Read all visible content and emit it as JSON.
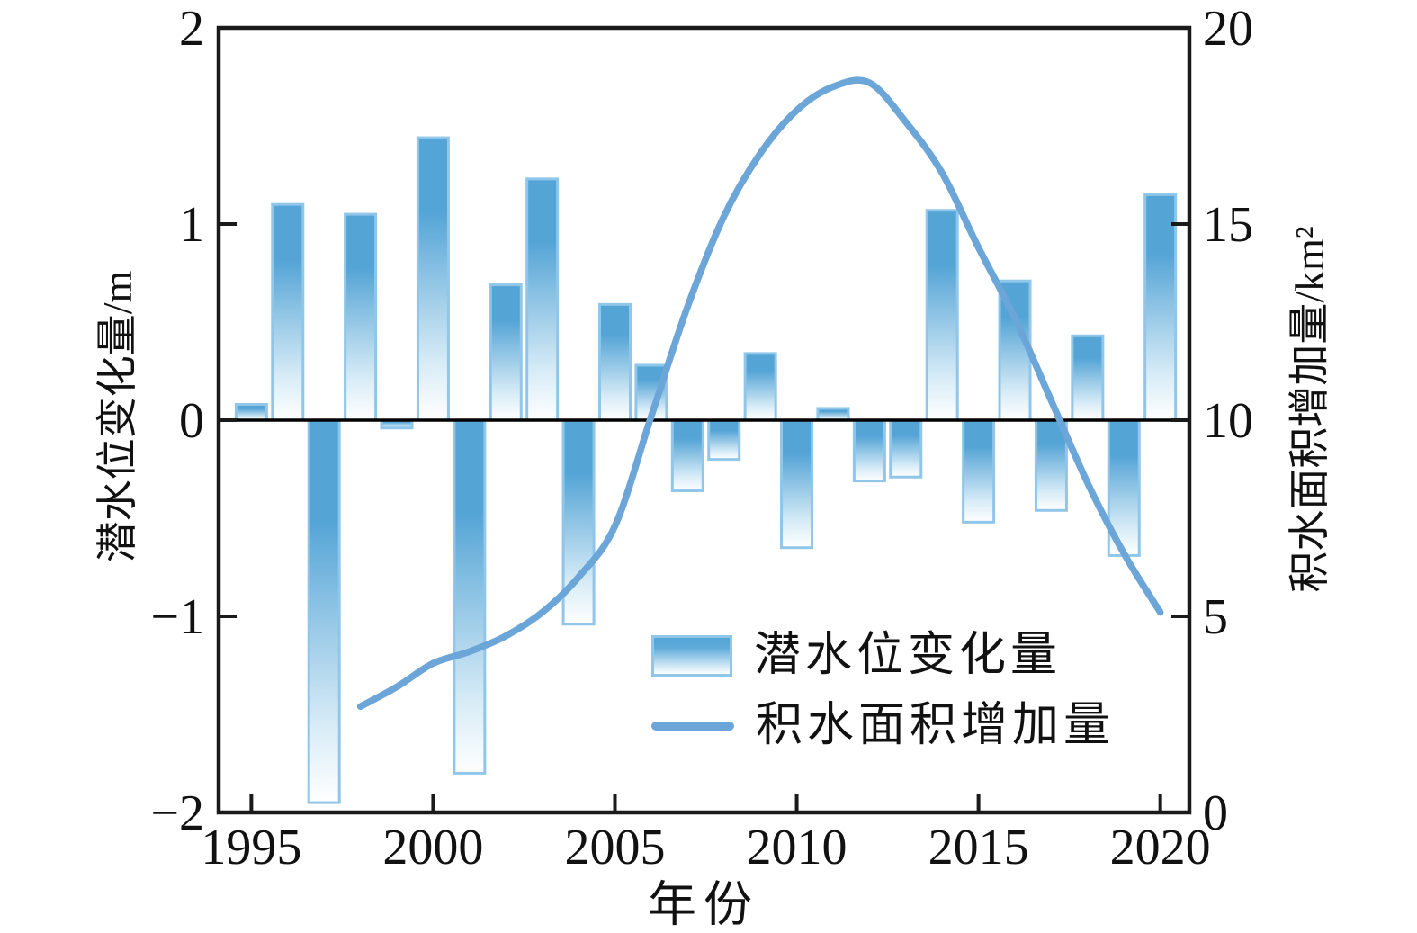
{
  "chart_data": {
    "type": "bar",
    "title": "",
    "xlabel": "年份",
    "ylabel_left": "潜水位变化量/m",
    "ylabel_right": "积水面积增加量/km²",
    "xlim": [
      1994.1,
      2020.8
    ],
    "ylim_left": [
      -2,
      2
    ],
    "ylim_right": [
      0,
      20
    ],
    "xticks": [
      1995,
      2000,
      2005,
      2010,
      2015,
      2020
    ],
    "yticks_left": [
      2,
      1,
      0,
      -1,
      -2
    ],
    "yticks_right": [
      20,
      15,
      10,
      5,
      0
    ],
    "grid": false,
    "legend_position": "inside-bottom-center",
    "categories": [
      1995,
      1996,
      1997,
      1998,
      1999,
      2000,
      2001,
      2002,
      2003,
      2004,
      2005,
      2006,
      2007,
      2008,
      2009,
      2010,
      2011,
      2012,
      2013,
      2014,
      2015,
      2016,
      2017,
      2018,
      2019,
      2020
    ],
    "series": [
      {
        "name": "潜水位变化量",
        "type": "bar",
        "axis": "left",
        "unit": "m",
        "values": [
          0.08,
          1.1,
          -1.95,
          1.05,
          -0.04,
          1.44,
          -1.8,
          0.69,
          1.23,
          -1.04,
          0.59,
          0.28,
          -0.36,
          -0.2,
          0.34,
          -0.65,
          0.06,
          -0.31,
          -0.29,
          1.07,
          -0.52,
          0.71,
          -0.46,
          0.43,
          -0.69,
          1.15
        ]
      },
      {
        "name": "积水面积增加量",
        "type": "line",
        "axis": "right",
        "unit": "km²",
        "x": [
          1998,
          1999,
          2000,
          2001,
          2002,
          2003,
          2004,
          2005,
          2006,
          2007,
          2008,
          2009,
          2010,
          2011,
          2012,
          2013,
          2014,
          2015,
          2016,
          2017,
          2018,
          2019,
          2020
        ],
        "values": [
          2.7,
          3.2,
          3.8,
          4.1,
          4.5,
          5.1,
          6.0,
          7.3,
          10.1,
          12.9,
          15.2,
          16.8,
          17.9,
          18.5,
          18.6,
          17.6,
          16.3,
          14.4,
          12.6,
          10.5,
          8.4,
          6.6,
          5.1
        ]
      }
    ],
    "colors": {
      "bar_fill_top": "#54a4d6",
      "bar_fill_bottom": "#ffffff",
      "bar_border": "#8fc6e9",
      "line": "#6ca6d8",
      "axis": "#1a1a1a",
      "text": "#111111"
    }
  },
  "legend": {
    "bar_label": "潜水位变化量",
    "line_label": "积水面积增加量"
  }
}
